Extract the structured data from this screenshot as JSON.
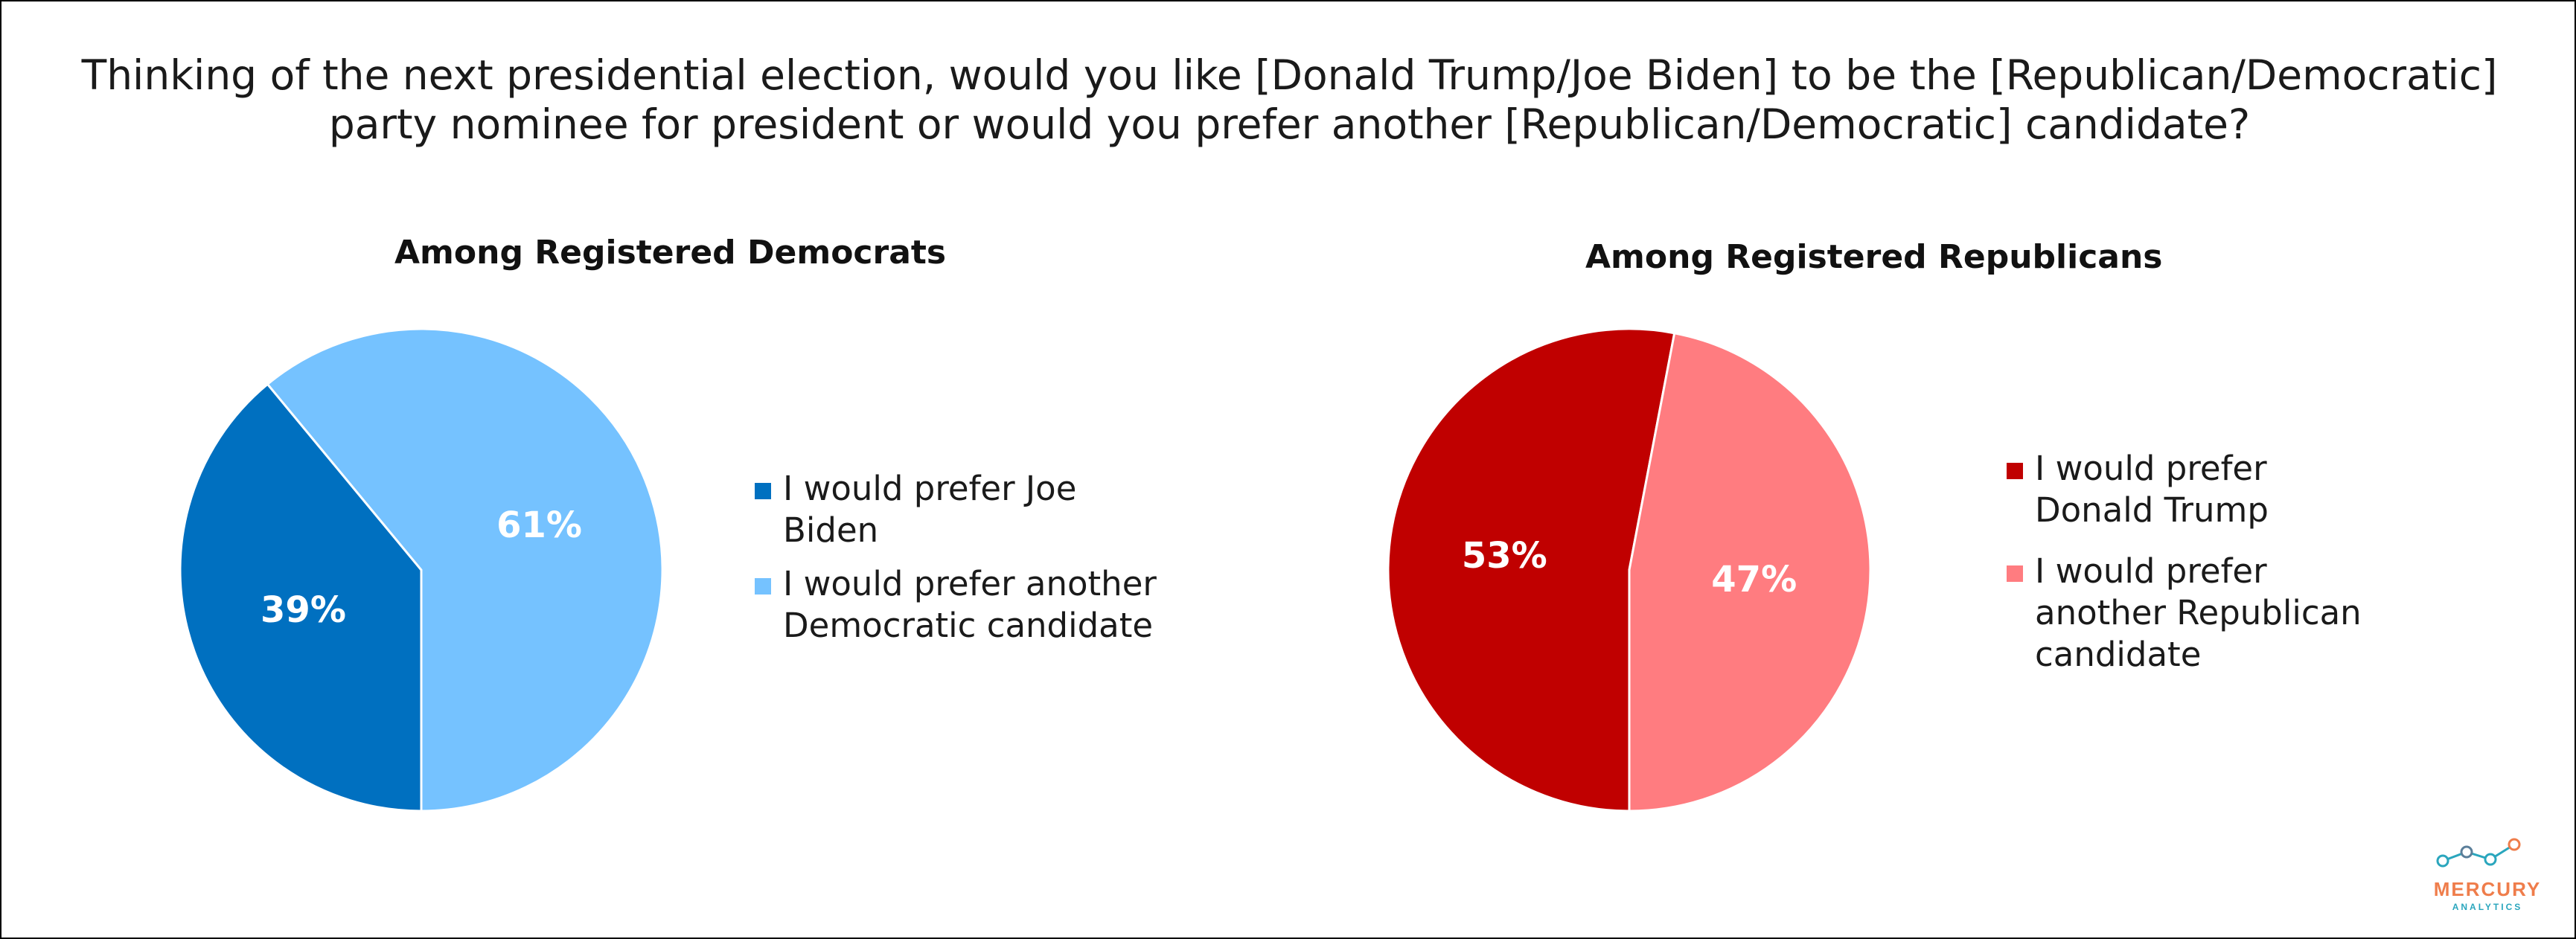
{
  "title": "Thinking of the next presidential election, would you like [Donald Trump/Joe Biden] to be the [Republican/Democratic] party nominee for president or would you prefer another [Republican/Democratic] candidate?",
  "title_lines": [
    "Thinking of the next presidential election, would you like [Donald Trump/Joe Biden] to be the [Republican/Democratic]",
    "party nominee for president or would you prefer another [Republican/Democratic] candidate?"
  ],
  "chart_data": [
    {
      "type": "pie",
      "title": "Among Registered Democrats",
      "categories": [
        "I would prefer Joe Biden",
        "I would prefer another Democratic candidate"
      ],
      "values": [
        39,
        61
      ],
      "labels": [
        "39%",
        "61%"
      ],
      "colors": [
        "#0070c0",
        "#75c2ff"
      ],
      "legend_position": "right",
      "start": "bottom",
      "direction": "clockwise"
    },
    {
      "type": "pie",
      "title": "Among Registered Republicans",
      "categories": [
        "I would prefer Donald Trump",
        "I would prefer another Republican candidate"
      ],
      "values": [
        53,
        47
      ],
      "labels": [
        "53%",
        "47%"
      ],
      "colors": [
        "#c00000",
        "#ff7c80"
      ],
      "legend_position": "right",
      "start": "bottom",
      "direction": "clockwise"
    }
  ],
  "legends": {
    "dem": [
      {
        "line1": "I would prefer Joe",
        "line2": "Biden"
      },
      {
        "line1": "I would prefer another",
        "line2": "Democratic candidate"
      }
    ],
    "rep": [
      {
        "line1": "I would prefer",
        "line2": "Donald Trump",
        "line3": ""
      },
      {
        "line1": "I would prefer",
        "line2": "another Republican",
        "line3": "candidate"
      }
    ]
  },
  "logo": {
    "name": "MERCURY",
    "sub": "ANALYTICS",
    "colors": {
      "teal": "#2aa6bd",
      "orange": "#ef7d4b"
    }
  }
}
